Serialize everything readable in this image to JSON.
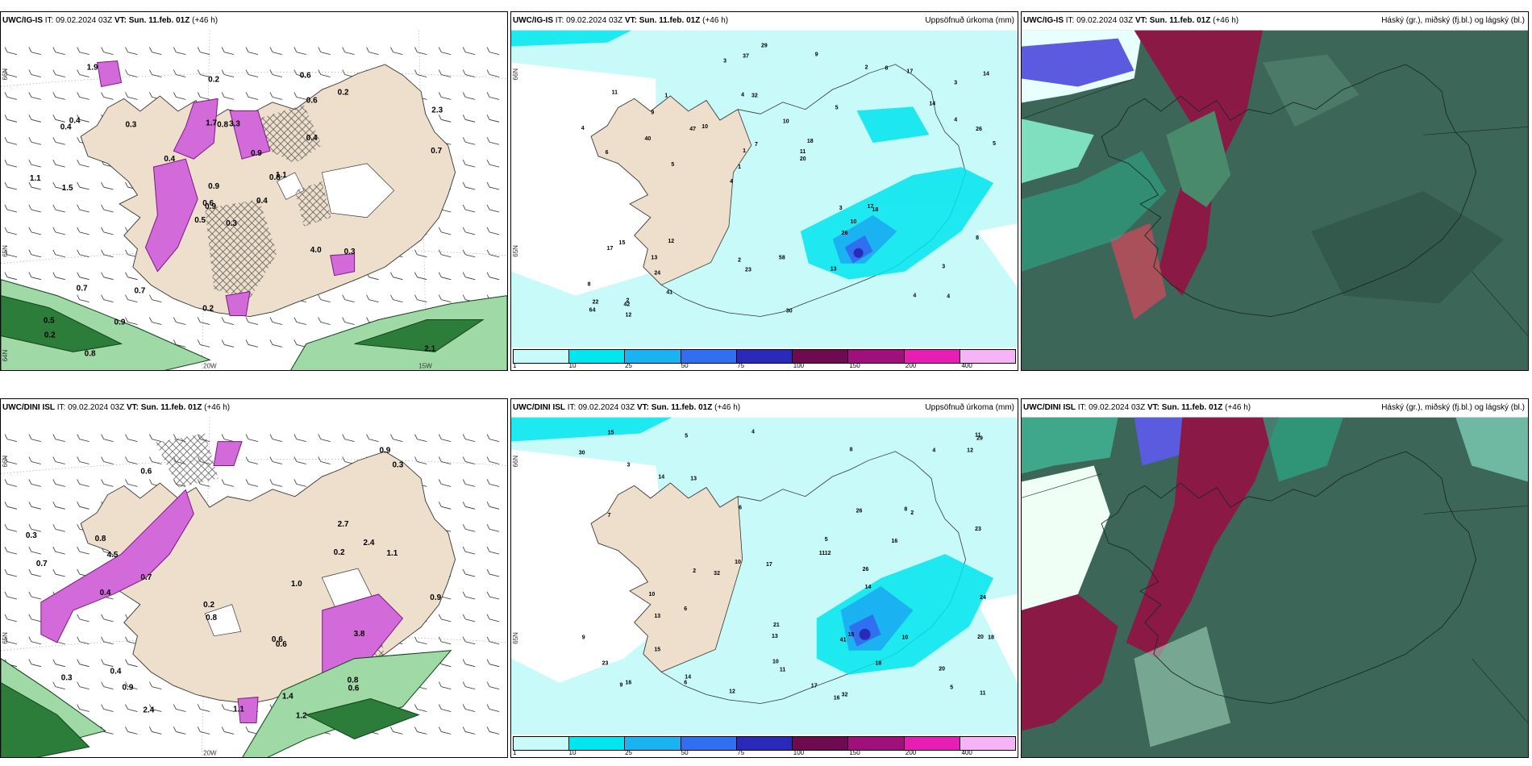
{
  "panels": {
    "p0": {
      "model": "UWC/IG-IS",
      "it": "IT: 09.02.2024 03Z",
      "vt_label": "VT:",
      "vt": "Sun. 11.feb. 01Z",
      "lead": "(+46 h)",
      "title": ""
    },
    "p1": {
      "model": "UWC/IG-IS",
      "it": "IT: 09.02.2024 03Z",
      "vt_label": "VT:",
      "vt": "Sun. 11.feb. 01Z",
      "lead": "(+46 h)",
      "title": "Uppsöfnuð úrkoma (mm)"
    },
    "p2": {
      "model": "UWC/IG-IS",
      "it": "IT: 09.02.2024 03Z",
      "vt_label": "VT:",
      "vt": "Sun. 11.feb. 01Z",
      "lead": "(+46 h)",
      "title": "Háský (gr.), miðský (fj.bl.) og lágský (bl.)"
    },
    "p3": {
      "model": "UWC/DINI ISL",
      "it": "IT: 09.02.2024 03Z",
      "vt_label": "VT:",
      "vt": "Sun. 11.feb. 01Z",
      "lead": "(+46 h)",
      "title": ""
    },
    "p4": {
      "model": "UWC/DINI ISL",
      "it": "IT: 09.02.2024 03Z",
      "vt_label": "VT:",
      "vt": "Sun. 11.feb. 01Z",
      "lead": "(+46 h)",
      "title": "Uppsöfnuð úrkoma (mm)"
    },
    "p5": {
      "model": "UWC/DINI ISL",
      "it": "IT: 09.02.2024 03Z",
      "vt_label": "VT:",
      "vt": "Sun. 11.feb. 01Z",
      "lead": "(+46 h)",
      "title": "Háský (gr.), miðský (fj.bl.) og lágský (bl.)"
    }
  },
  "legend": {
    "ticks": [
      "1",
      "10",
      "25",
      "50",
      "75",
      "100",
      "150",
      "200",
      "400"
    ],
    "colors": [
      "#c8fafa",
      "#00e5ee",
      "#1ab2f0",
      "#3070f0",
      "#2a2ab8",
      "#6e0a50",
      "#a0107a",
      "#e61eb4",
      "#f5b4f5"
    ]
  },
  "axis_labels": {
    "p0": {
      "lat66": "66N",
      "lat65": "65N",
      "lat64": "64N",
      "lon20": "20W",
      "lon15": "15W"
    },
    "p1": {
      "lat66": "66N",
      "lat65": "65N"
    },
    "p3": {
      "lat66": "66N",
      "lat65": "65N",
      "lon20": "20W"
    },
    "p4": {
      "lat66": "66N",
      "lat65": "65N"
    }
  },
  "precip_numbers": {
    "p1": [
      "4",
      "6",
      "3",
      "4",
      "5",
      "2",
      "4",
      "10",
      "15",
      "10",
      "8",
      "24",
      "32",
      "18",
      "18",
      "11",
      "37",
      "5",
      "3",
      "4",
      "1",
      "2",
      "1",
      "1",
      "2",
      "12",
      "4",
      "3",
      "17",
      "30",
      "47",
      "40",
      "26",
      "41",
      "26",
      "11",
      "22",
      "23",
      "20",
      "17",
      "14",
      "14",
      "10",
      "13",
      "13",
      "12",
      "64",
      "58",
      "17",
      "29",
      "5",
      "4",
      "9",
      "8",
      "42",
      "9",
      "3",
      "7",
      "8"
    ],
    "p4": [
      "12",
      "16",
      "14",
      "18",
      "5",
      "3",
      "2",
      "5",
      "4",
      "6",
      "4",
      "11",
      "10",
      "13",
      "8",
      "11",
      "7",
      "6",
      "32",
      "30",
      "41",
      "29",
      "5",
      "9",
      "2",
      "10",
      "9",
      "13",
      "15",
      "14",
      "17",
      "32",
      "21",
      "12",
      "15",
      "26",
      "20",
      "23",
      "26",
      "20",
      "12",
      "16",
      "18",
      "16",
      "13",
      "15",
      "24",
      "17",
      "14",
      "10",
      "11",
      "23",
      "11",
      "10",
      "6",
      "8"
    ]
  },
  "snow_numbers": {
    "p0": [
      "0.3",
      "0.4",
      "0.9",
      "0.5",
      "0.8",
      "0.7",
      "0.6",
      "3.3",
      "0.6",
      "0.4",
      "1.9",
      "2.1",
      "1.5",
      "2.3",
      "0.5",
      "0.4",
      "0.8",
      "1.7",
      "0.9",
      "0.7",
      "0.4",
      "0.2",
      "0.9",
      "0.8",
      "1.1",
      "0.3",
      "0.4",
      "0.2",
      "1.1",
      "4.0",
      "0.7",
      "0.6",
      "0.2",
      "0.9",
      "0.3",
      "0.2"
    ],
    "p3": [
      "1.2",
      "0.6",
      "0.4",
      "0.8",
      "2.4",
      "1.4",
      "0.9",
      "0.7",
      "0.8",
      "0.9",
      "0.3",
      "0.3",
      "0.2",
      "0.6",
      "0.2",
      "0.9",
      "0.7",
      "0.3",
      "3.8",
      "1.1",
      "0.8",
      "0.6",
      "2.4",
      "0.6",
      "1.0",
      "2.7",
      "0.4",
      "4.5",
      "1.1"
    ]
  }
}
